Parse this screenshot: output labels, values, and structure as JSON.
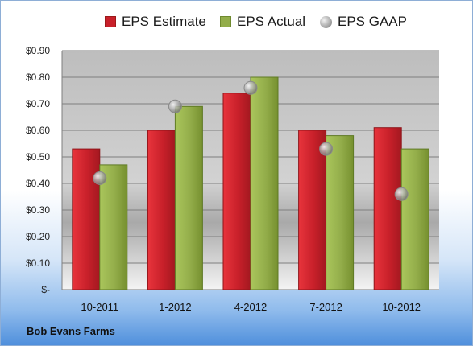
{
  "chart_data": {
    "type": "bar",
    "categories": [
      "10-2011",
      "1-2012",
      "4-2012",
      "7-2012",
      "10-2012"
    ],
    "series": [
      {
        "name": "EPS Estimate",
        "kind": "bar",
        "color": "#c8202a",
        "values": [
          0.53,
          0.6,
          0.74,
          0.6,
          0.61
        ]
      },
      {
        "name": "EPS Actual",
        "kind": "bar",
        "color": "#93ad4a",
        "values": [
          0.47,
          0.69,
          0.8,
          0.58,
          0.53
        ]
      },
      {
        "name": "EPS GAAP",
        "kind": "marker",
        "color": "#a6a6a6",
        "values": [
          0.42,
          0.69,
          0.76,
          0.53,
          0.36
        ]
      }
    ],
    "yticks": [
      "$-",
      "$0.10",
      "$0.20",
      "$0.30",
      "$0.40",
      "$0.50",
      "$0.60",
      "$0.70",
      "$0.80",
      "$0.90"
    ],
    "ylim": [
      0,
      0.9
    ],
    "grid": true,
    "legend_position": "top"
  },
  "footer": {
    "company": "Bob Evans Farms"
  }
}
